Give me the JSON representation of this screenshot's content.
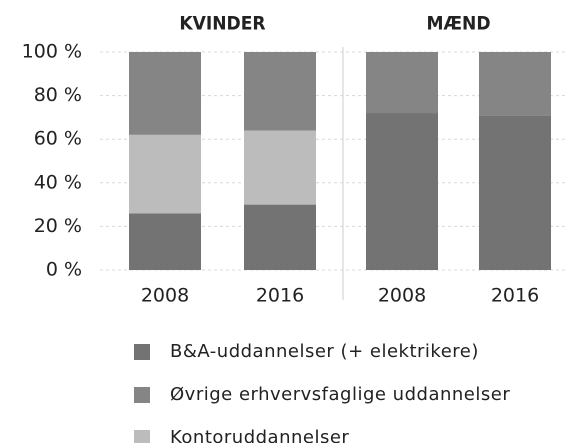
{
  "chart_data": {
    "type": "stacked_bar",
    "groups": [
      "KVINDER",
      "MÆND"
    ],
    "categories": [
      "2008",
      "2016",
      "2008",
      "2016"
    ],
    "series": [
      {
        "name": "B&A-uddannelser (+ elektrikere)",
        "color": "#737373",
        "values": [
          26,
          30,
          72,
          71
        ]
      },
      {
        "name": "Kontoruddannelser",
        "color": "#bcbcbc",
        "values": [
          36,
          34,
          0,
          0
        ]
      },
      {
        "name": "Øvrige erhvervsfaglige uddannelser",
        "color": "#858585",
        "values": [
          38,
          36,
          28,
          29
        ]
      }
    ],
    "legend_order": [
      0,
      2,
      1
    ],
    "ylim": [
      0,
      100
    ],
    "yticks": [
      {
        "value": 0,
        "label": "0 %"
      },
      {
        "value": 20,
        "label": "20 %"
      },
      {
        "value": 40,
        "label": "40 %"
      },
      {
        "value": 60,
        "label": "60 %"
      },
      {
        "value": 80,
        "label": "80 %"
      },
      {
        "value": 100,
        "label": "100 %"
      }
    ],
    "grid": true
  }
}
